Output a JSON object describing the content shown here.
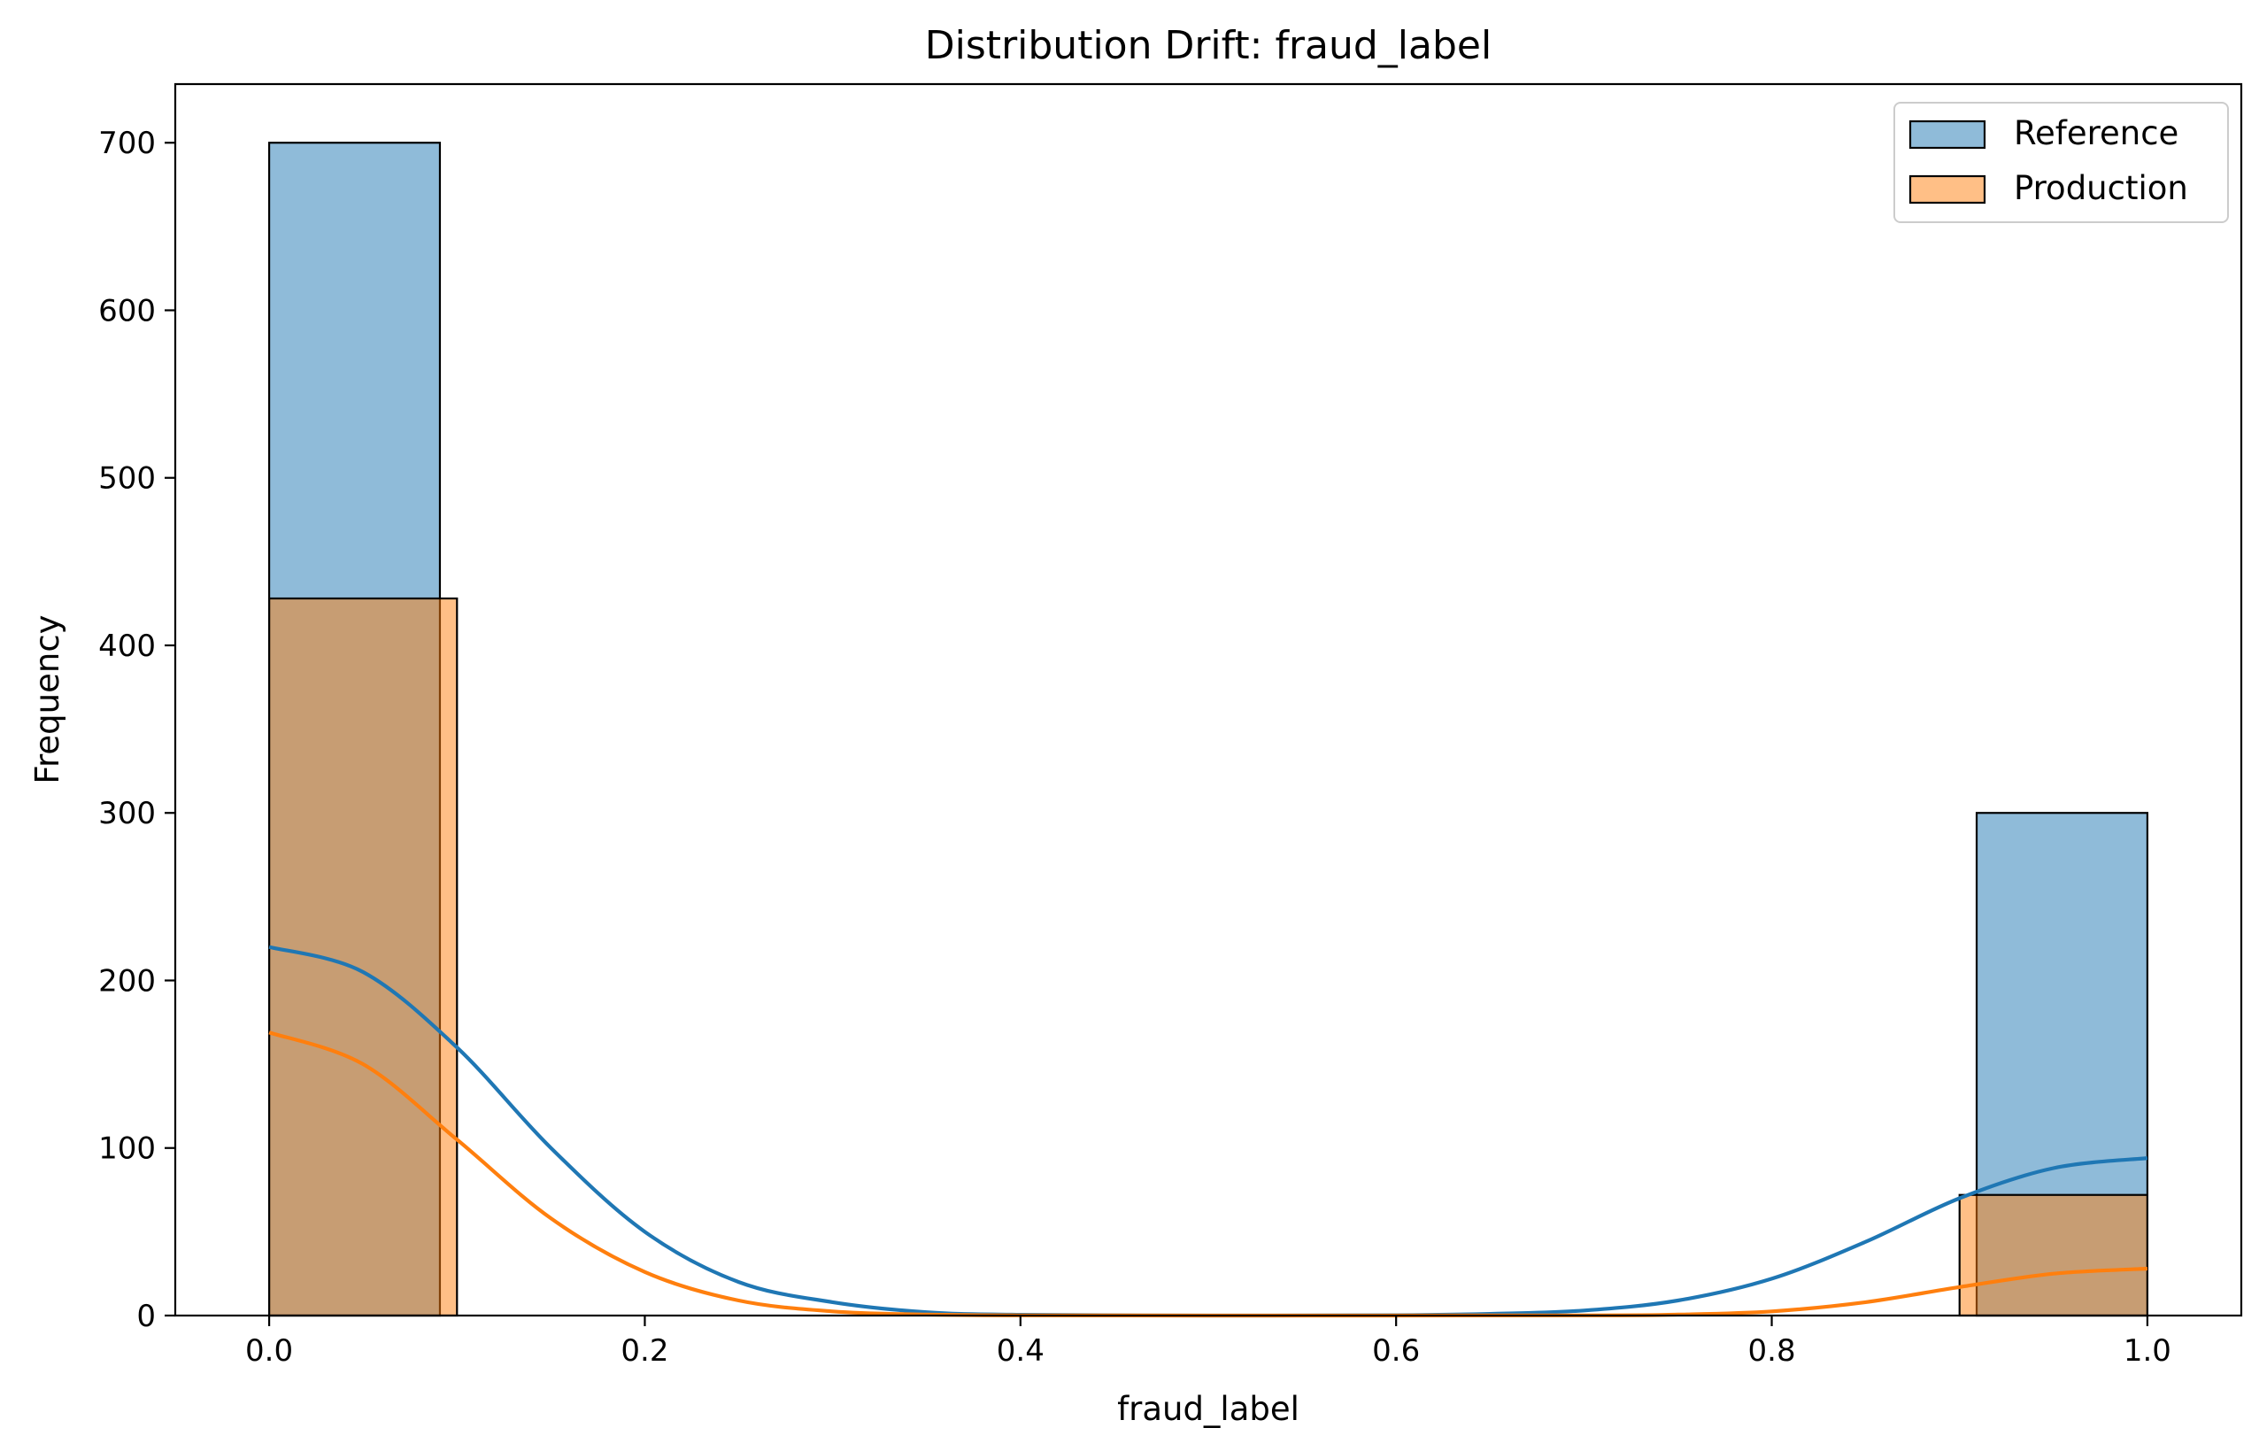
{
  "chart_data": {
    "type": "histogram",
    "title": "Distribution Drift: fraud_label",
    "xlabel": "fraud_label",
    "ylabel": "Frequency",
    "xlim": [
      -0.05,
      1.05
    ],
    "ylim": [
      0,
      735
    ],
    "xticks": [
      0.0,
      0.2,
      0.4,
      0.6,
      0.8,
      1.0
    ],
    "xtick_labels": [
      "0.0",
      "0.2",
      "0.4",
      "0.6",
      "0.8",
      "1.0"
    ],
    "yticks": [
      0,
      100,
      200,
      300,
      400,
      500,
      600,
      700
    ],
    "ytick_labels": [
      "0",
      "100",
      "200",
      "300",
      "400",
      "500",
      "600",
      "700"
    ],
    "grid": false,
    "legend_position": "top-right",
    "series": [
      {
        "name": "Reference",
        "color": "#1f77b4",
        "bins": [
          {
            "x0": 0.0,
            "x1": 0.0909,
            "count": 700
          },
          {
            "x0": 0.9091,
            "x1": 1.0,
            "count": 300
          }
        ],
        "kde": [
          [
            0.0,
            220
          ],
          [
            0.05,
            205
          ],
          [
            0.1,
            160
          ],
          [
            0.15,
            100
          ],
          [
            0.2,
            50
          ],
          [
            0.25,
            20
          ],
          [
            0.3,
            8
          ],
          [
            0.35,
            2
          ],
          [
            0.4,
            0.5
          ],
          [
            0.5,
            0
          ],
          [
            0.6,
            0.2
          ],
          [
            0.65,
            1
          ],
          [
            0.7,
            3
          ],
          [
            0.75,
            9
          ],
          [
            0.8,
            22
          ],
          [
            0.85,
            44
          ],
          [
            0.9,
            70
          ],
          [
            0.95,
            88
          ],
          [
            1.0,
            94
          ]
        ]
      },
      {
        "name": "Production",
        "color": "#ff7f0e",
        "bins": [
          {
            "x0": 0.0,
            "x1": 0.1,
            "count": 428
          },
          {
            "x0": 0.9,
            "x1": 1.0,
            "count": 72
          }
        ],
        "kde": [
          [
            0.0,
            169
          ],
          [
            0.05,
            150
          ],
          [
            0.1,
            105
          ],
          [
            0.15,
            58
          ],
          [
            0.2,
            26
          ],
          [
            0.25,
            9
          ],
          [
            0.3,
            2.5
          ],
          [
            0.35,
            0.6
          ],
          [
            0.4,
            0.1
          ],
          [
            0.5,
            0
          ],
          [
            0.7,
            0.1
          ],
          [
            0.75,
            0.6
          ],
          [
            0.8,
            2.5
          ],
          [
            0.85,
            8
          ],
          [
            0.9,
            17
          ],
          [
            0.95,
            25
          ],
          [
            1.0,
            28
          ]
        ]
      }
    ]
  }
}
